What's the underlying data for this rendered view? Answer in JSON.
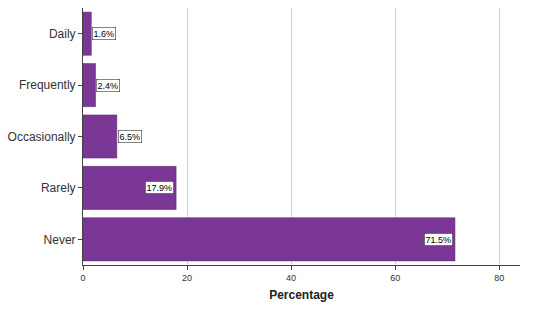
{
  "chart_data": {
    "type": "bar",
    "orientation": "horizontal",
    "x_label": "Percentage",
    "categories": [
      "Never",
      "Rarely",
      "Occasionally",
      "Frequently",
      "Daily"
    ],
    "values": [
      71.5,
      17.9,
      6.5,
      2.4,
      1.6
    ],
    "value_labels": [
      "71.5%",
      "17.9%",
      "6.5%",
      "2.4%",
      "1.6%"
    ],
    "data_labels": true,
    "color": "#7a3796",
    "xlim": [
      0,
      84
    ],
    "xticks": [
      0,
      20,
      40,
      60,
      80
    ],
    "grid": true
  }
}
